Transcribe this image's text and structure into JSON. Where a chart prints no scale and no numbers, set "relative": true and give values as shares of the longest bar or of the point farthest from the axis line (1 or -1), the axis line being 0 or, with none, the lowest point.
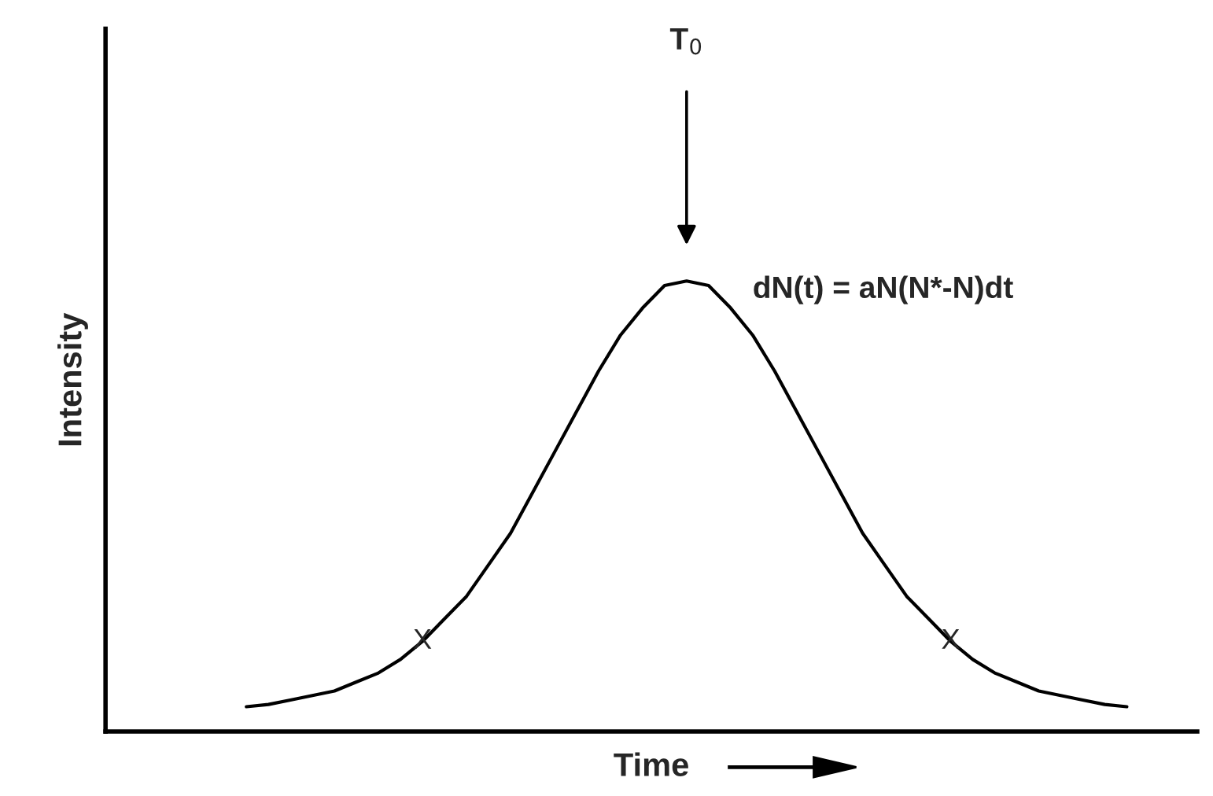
{
  "chart_data": {
    "type": "line",
    "relative": true,
    "xlabel": "Time",
    "ylabel": "Intensity",
    "categories": [
      null,
      null,
      null,
      null,
      null,
      null,
      null,
      null,
      null,
      null,
      null,
      null,
      null,
      null,
      null,
      null,
      null,
      null,
      null,
      null,
      null,
      null,
      null,
      null,
      null,
      null,
      null,
      null,
      null,
      null,
      null,
      null,
      null,
      null,
      null,
      null,
      null,
      null,
      null,
      null,
      null
    ],
    "series": [
      {
        "color": "#000000",
        "values": [
          0.055,
          0.06,
          0.07,
          0.08,
          0.09,
          0.11,
          0.13,
          0.16,
          0.2,
          0.25,
          0.3,
          0.37,
          0.44,
          0.53,
          0.62,
          0.71,
          0.8,
          0.88,
          0.94,
          0.99,
          1.0,
          0.99,
          0.94,
          0.88,
          0.8,
          0.71,
          0.62,
          0.53,
          0.44,
          0.37,
          0.3,
          0.25,
          0.2,
          0.16,
          0.13,
          0.11,
          0.09,
          0.08,
          0.07,
          0.06,
          0.055
        ]
      }
    ],
    "annotations": [
      "T$_{0}$",
      "dN(t) = aN(N*-N)dt",
      {
        "text": "X",
        "y": 0.2
      },
      {
        "text": "X",
        "y": 0.2
      }
    ],
    "grid": false,
    "legend": false
  }
}
